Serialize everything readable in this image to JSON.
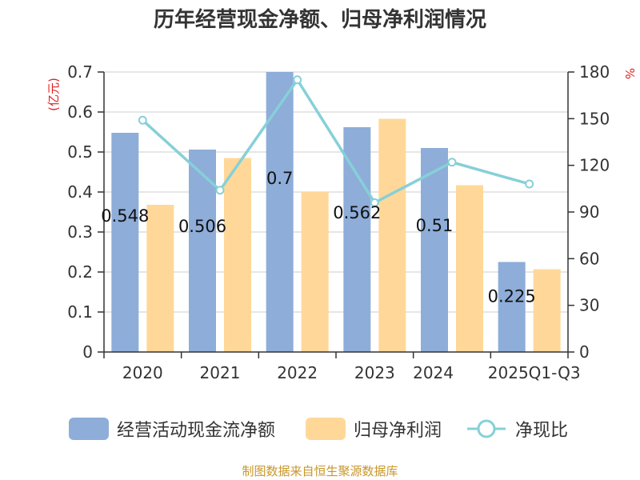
{
  "chart_data": {
    "type": "bar",
    "title": "历年经营现金净额、归母净利润情况",
    "categories": [
      "2020",
      "2021",
      "2022",
      "2023",
      "2024",
      "2025Q1-Q3"
    ],
    "series": [
      {
        "name": "经营活动现金流净额",
        "kind": "bar",
        "axis": "left",
        "color": "#8eadd9",
        "values": [
          0.548,
          0.506,
          0.7,
          0.562,
          0.51,
          0.225
        ],
        "labels": [
          "0.548",
          "0.506",
          "0.7",
          "0.562",
          "0.51",
          "0.225"
        ]
      },
      {
        "name": "归母净利润",
        "kind": "bar",
        "axis": "left",
        "color": "#ffd899",
        "values": [
          0.368,
          0.485,
          0.4,
          0.583,
          0.417,
          0.207
        ]
      },
      {
        "name": "净现比",
        "kind": "line",
        "axis": "right",
        "color": "#86d0d8",
        "values": [
          149,
          104,
          175,
          96,
          122,
          108
        ]
      }
    ],
    "y_left": {
      "unit": "(亿元)",
      "min": 0,
      "max": 0.7,
      "ticks": [
        "0",
        "0.1",
        "0.2",
        "0.3",
        "0.4",
        "0.5",
        "0.6",
        "0.7"
      ]
    },
    "y_right": {
      "unit": "%",
      "min": 0,
      "max": 180,
      "ticks": [
        "0",
        "30",
        "60",
        "90",
        "120",
        "150",
        "180"
      ]
    },
    "grid": true,
    "legend_position": "bottom"
  },
  "source_note": "制图数据来自恒生聚源数据库"
}
